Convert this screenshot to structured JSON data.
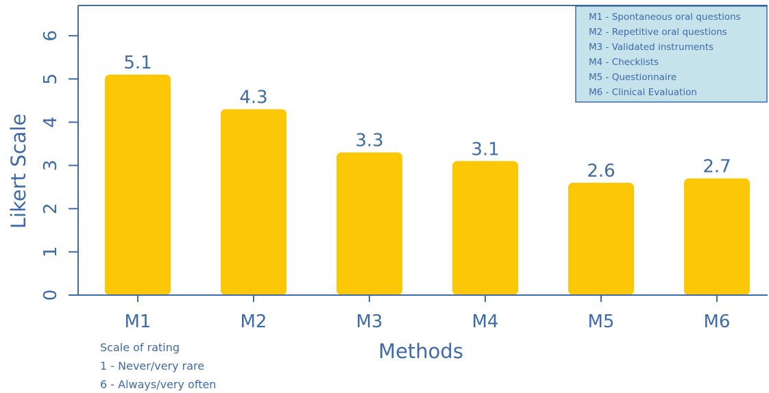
{
  "chart_data": {
    "type": "bar",
    "categories": [
      "M1",
      "M2",
      "M3",
      "M4",
      "M5",
      "M6"
    ],
    "values": [
      5.1,
      4.3,
      3.3,
      3.1,
      2.6,
      2.7
    ],
    "value_labels": [
      "5.1",
      "4.3",
      "3.3",
      "3.1",
      "2.6",
      "2.7"
    ],
    "xlabel": "Methods",
    "ylabel": "Likert Scale",
    "ylim": [
      0,
      6.7
    ],
    "yticks": [
      "0",
      "1",
      "2",
      "3",
      "4",
      "5",
      "6"
    ],
    "grid": false,
    "legend_placement": "top-right",
    "legend": [
      "M1 - Spontaneous oral questions",
      "M2 - Repetitive oral questions",
      "M3 - Validated instruments",
      "M4 - Checklists",
      "M5 - Questionnaire",
      "M6 - Clinical Evaluation"
    ],
    "note": [
      "Scale of rating",
      "1 - Never/very rare",
      "6 - Always/very often"
    ],
    "colors": {
      "bar": "#fcc707",
      "text": "#3d6aa8",
      "axis": "#3d6aa8",
      "legend_bg": "#c6e3ec",
      "legend_border": "#3d6aa8"
    }
  }
}
